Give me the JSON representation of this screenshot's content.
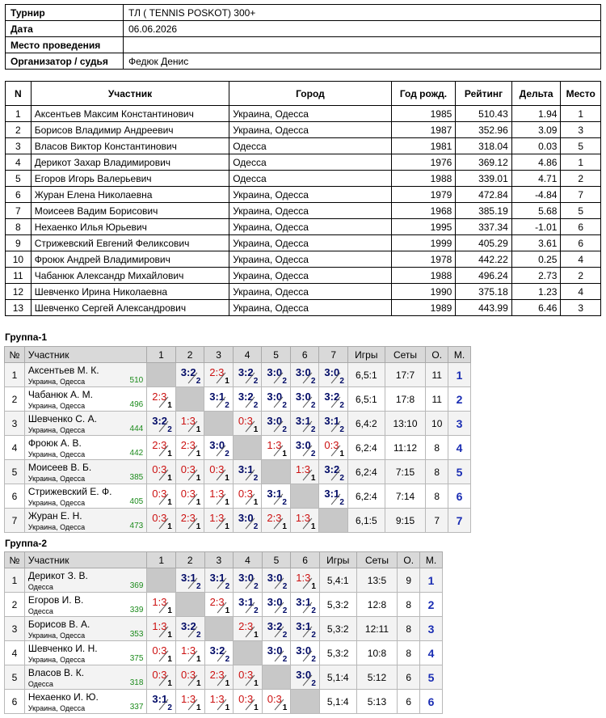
{
  "info": [
    {
      "key": "Турнир",
      "value": "ТЛ ( TENNIS POSKOT) 300+"
    },
    {
      "key": "Дата",
      "value": "06.06.2026"
    },
    {
      "key": "Место проведения",
      "value": ""
    },
    {
      "key": "Организатор / судья",
      "value": "Федюк Денис"
    }
  ],
  "participants_headers": [
    "N",
    "Участник",
    "Город",
    "Год рожд.",
    "Рейтинг",
    "Дельта",
    "Место"
  ],
  "participants": [
    [
      "1",
      "Аксентьев Максим Константинович",
      "Украина, Одесса",
      "1985",
      "510.43",
      "1.94",
      "1"
    ],
    [
      "2",
      "Борисов Владимир Андреевич",
      "Украина, Одесса",
      "1987",
      "352.96",
      "3.09",
      "3"
    ],
    [
      "3",
      "Власов Виктор Константинович",
      "Одесса",
      "1981",
      "318.04",
      "0.03",
      "5"
    ],
    [
      "4",
      "Дерикот Захар Владимирович",
      "Одесса",
      "1976",
      "369.12",
      "4.86",
      "1"
    ],
    [
      "5",
      "Егоров Игорь Валерьевич",
      "Одесса",
      "1988",
      "339.01",
      "4.71",
      "2"
    ],
    [
      "6",
      "Журан Елена Николаевна",
      "Украина, Одесса",
      "1979",
      "472.84",
      "-4.84",
      "7"
    ],
    [
      "7",
      "Моисеев Вадим Борисович",
      "Украина, Одесса",
      "1968",
      "385.19",
      "5.68",
      "5"
    ],
    [
      "8",
      "Нехаенко Илья Юрьевич",
      "Украина, Одесса",
      "1995",
      "337.34",
      "-1.01",
      "6"
    ],
    [
      "9",
      "Стрижевский Евгений Феликсович",
      "Украина, Одесса",
      "1999",
      "405.29",
      "3.61",
      "6"
    ],
    [
      "10",
      "Фроюк Андрей Владимирович",
      "Украина, Одесса",
      "1978",
      "442.22",
      "0.25",
      "4"
    ],
    [
      "11",
      "Чабанюк Александр Михайлович",
      "Украина, Одесса",
      "1988",
      "496.24",
      "2.73",
      "2"
    ],
    [
      "12",
      "Шевченко Ирина Николаевна",
      "Украина, Одесса",
      "1990",
      "375.18",
      "1.23",
      "4"
    ],
    [
      "13",
      "Шевченко Сергей Александрович",
      "Украина, Одесса",
      "1989",
      "443.99",
      "6.46",
      "3"
    ]
  ],
  "group1": {
    "title": "Группа-1",
    "headers": [
      "№",
      "Участник",
      "1",
      "2",
      "3",
      "4",
      "5",
      "6",
      "7",
      "Игры",
      "Сеты",
      "О.",
      "М."
    ],
    "rows": [
      {
        "n": "1",
        "name": "Аксентьев М. К.",
        "city": "Украина, Одесса",
        "rating": "510",
        "cells": [
          null,
          [
            "3:2",
            "2"
          ],
          [
            "2:3",
            "1"
          ],
          [
            "3:2",
            "2"
          ],
          [
            "3:0",
            "2"
          ],
          [
            "3:0",
            "2"
          ],
          [
            "3:0",
            "2"
          ]
        ],
        "games": "6,5:1",
        "sets": "17:7",
        "points": "11",
        "place": "1"
      },
      {
        "n": "2",
        "name": "Чабанюк А. М.",
        "city": "Украина, Одесса",
        "rating": "496",
        "cells": [
          [
            "2:3",
            "1"
          ],
          null,
          [
            "3:1",
            "2"
          ],
          [
            "3:2",
            "2"
          ],
          [
            "3:0",
            "2"
          ],
          [
            "3:0",
            "2"
          ],
          [
            "3:2",
            "2"
          ]
        ],
        "games": "6,5:1",
        "sets": "17:8",
        "points": "11",
        "place": "2"
      },
      {
        "n": "3",
        "name": "Шевченко С. А.",
        "city": "Украина, Одесса",
        "rating": "444",
        "cells": [
          [
            "3:2",
            "2"
          ],
          [
            "1:3",
            "1"
          ],
          null,
          [
            "0:3",
            "1"
          ],
          [
            "3:0",
            "2"
          ],
          [
            "3:1",
            "2"
          ],
          [
            "3:1",
            "2"
          ]
        ],
        "games": "6,4:2",
        "sets": "13:10",
        "points": "10",
        "place": "3"
      },
      {
        "n": "4",
        "name": "Фроюк А. В.",
        "city": "Украина, Одесса",
        "rating": "442",
        "cells": [
          [
            "2:3",
            "1"
          ],
          [
            "2:3",
            "1"
          ],
          [
            "3:0",
            "2"
          ],
          null,
          [
            "1:3",
            "1"
          ],
          [
            "3:0",
            "2"
          ],
          [
            "0:3",
            "1"
          ]
        ],
        "games": "6,2:4",
        "sets": "11:12",
        "points": "8",
        "place": "4"
      },
      {
        "n": "5",
        "name": "Моисеев В. Б.",
        "city": "Украина, Одесса",
        "rating": "385",
        "cells": [
          [
            "0:3",
            "1"
          ],
          [
            "0:3",
            "1"
          ],
          [
            "0:3",
            "1"
          ],
          [
            "3:1",
            "2"
          ],
          null,
          [
            "1:3",
            "1"
          ],
          [
            "3:2",
            "2"
          ]
        ],
        "games": "6,2:4",
        "sets": "7:15",
        "points": "8",
        "place": "5"
      },
      {
        "n": "6",
        "name": "Стрижевский Е. Ф.",
        "city": "Украина, Одесса",
        "rating": "405",
        "cells": [
          [
            "0:3",
            "1"
          ],
          [
            "0:3",
            "1"
          ],
          [
            "1:3",
            "1"
          ],
          [
            "0:3",
            "1"
          ],
          [
            "3:1",
            "2"
          ],
          null,
          [
            "3:1",
            "2"
          ]
        ],
        "games": "6,2:4",
        "sets": "7:14",
        "points": "8",
        "place": "6"
      },
      {
        "n": "7",
        "name": "Журан Е. Н.",
        "city": "Украина, Одесса",
        "rating": "473",
        "cells": [
          [
            "0:3",
            "1"
          ],
          [
            "2:3",
            "1"
          ],
          [
            "1:3",
            "1"
          ],
          [
            "3:0",
            "2"
          ],
          [
            "2:3",
            "1"
          ],
          [
            "1:3",
            "1"
          ],
          null
        ],
        "games": "6,1:5",
        "sets": "9:15",
        "points": "7",
        "place": "7"
      }
    ]
  },
  "group2": {
    "title": "Группа-2",
    "headers": [
      "№",
      "Участник",
      "1",
      "2",
      "3",
      "4",
      "5",
      "6",
      "Игры",
      "Сеты",
      "О.",
      "М."
    ],
    "rows": [
      {
        "n": "1",
        "name": "Дерикот З. В.",
        "city": "Одесса",
        "rating": "369",
        "cells": [
          null,
          [
            "3:1",
            "2"
          ],
          [
            "3:1",
            "2"
          ],
          [
            "3:0",
            "2"
          ],
          [
            "3:0",
            "2"
          ],
          [
            "1:3",
            "1"
          ]
        ],
        "games": "5,4:1",
        "sets": "13:5",
        "points": "9",
        "place": "1"
      },
      {
        "n": "2",
        "name": "Егоров И. В.",
        "city": "Одесса",
        "rating": "339",
        "cells": [
          [
            "1:3",
            "1"
          ],
          null,
          [
            "2:3",
            "1"
          ],
          [
            "3:1",
            "2"
          ],
          [
            "3:0",
            "2"
          ],
          [
            "3:1",
            "2"
          ]
        ],
        "games": "5,3:2",
        "sets": "12:8",
        "points": "8",
        "place": "2"
      },
      {
        "n": "3",
        "name": "Борисов В. А.",
        "city": "Украина, Одесса",
        "rating": "353",
        "cells": [
          [
            "1:3",
            "1"
          ],
          [
            "3:2",
            "2"
          ],
          null,
          [
            "2:3",
            "1"
          ],
          [
            "3:2",
            "2"
          ],
          [
            "3:1",
            "2"
          ]
        ],
        "games": "5,3:2",
        "sets": "12:11",
        "points": "8",
        "place": "3"
      },
      {
        "n": "4",
        "name": "Шевченко И. Н.",
        "city": "Украина, Одесса",
        "rating": "375",
        "cells": [
          [
            "0:3",
            "1"
          ],
          [
            "1:3",
            "1"
          ],
          [
            "3:2",
            "2"
          ],
          null,
          [
            "3:0",
            "2"
          ],
          [
            "3:0",
            "2"
          ]
        ],
        "games": "5,3:2",
        "sets": "10:8",
        "points": "8",
        "place": "4"
      },
      {
        "n": "5",
        "name": "Власов В. К.",
        "city": "Одесса",
        "rating": "318",
        "cells": [
          [
            "0:3",
            "1"
          ],
          [
            "0:3",
            "1"
          ],
          [
            "2:3",
            "1"
          ],
          [
            "0:3",
            "1"
          ],
          null,
          [
            "3:0",
            "2"
          ]
        ],
        "games": "5,1:4",
        "sets": "5:12",
        "points": "6",
        "place": "5"
      },
      {
        "n": "6",
        "name": "Нехаенко И. Ю.",
        "city": "Украина, Одесса",
        "rating": "337",
        "cells": [
          [
            "3:1",
            "2"
          ],
          [
            "1:3",
            "1"
          ],
          [
            "1:3",
            "1"
          ],
          [
            "0:3",
            "1"
          ],
          [
            "0:3",
            "1"
          ],
          null
        ],
        "games": "5,1:4",
        "sets": "5:13",
        "points": "6",
        "place": "6"
      }
    ]
  }
}
